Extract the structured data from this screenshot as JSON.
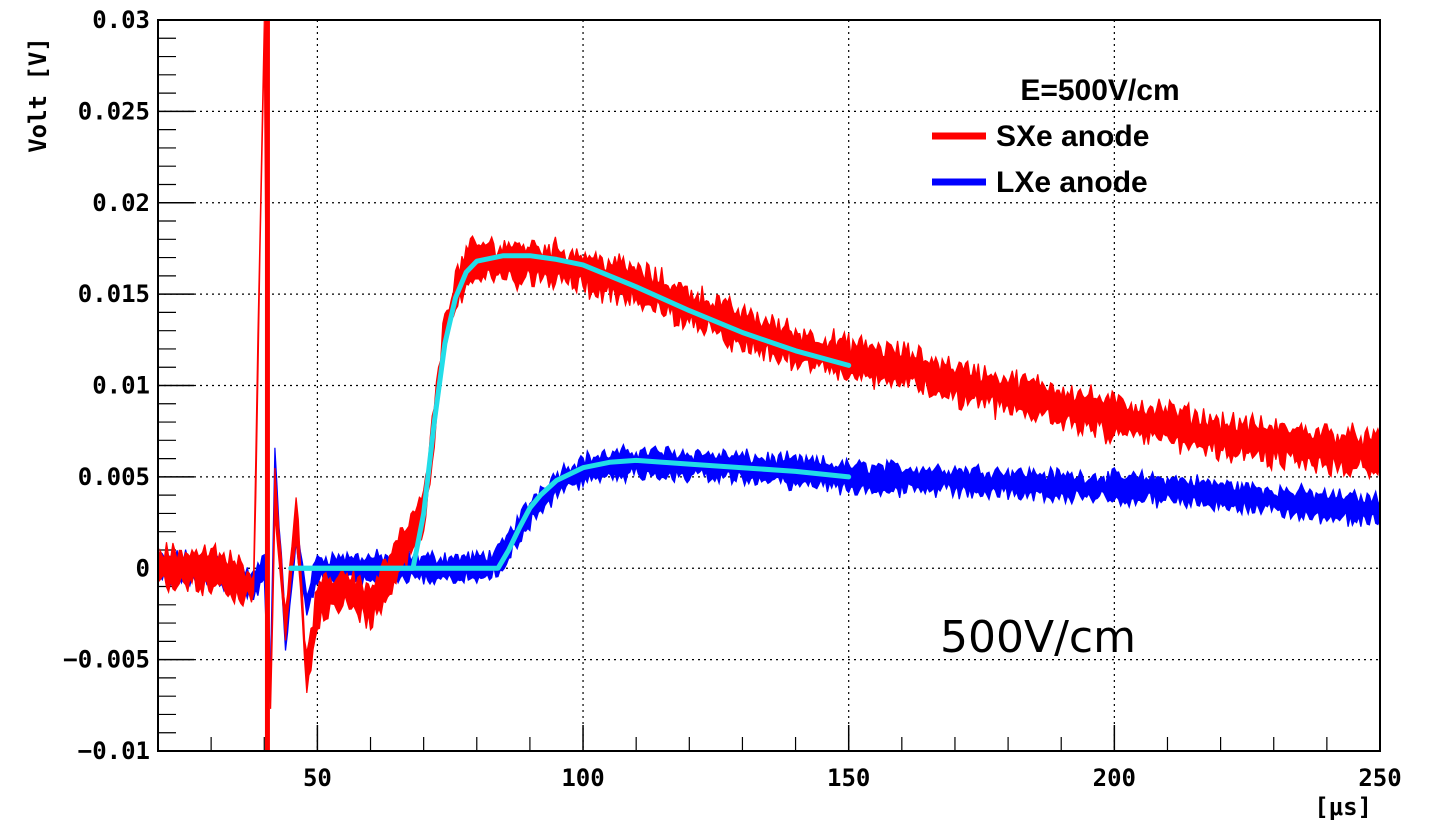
{
  "chart_data": {
    "type": "line",
    "title": "",
    "xlabel": "[μs]",
    "ylabel": "Volt  [V]",
    "xlim": [
      20,
      250
    ],
    "ylim": [
      -0.01,
      0.03
    ],
    "x_ticks": [
      50,
      100,
      150,
      200,
      250
    ],
    "x_tick_labels": [
      "50",
      "100",
      "150",
      "200",
      "250"
    ],
    "y_ticks": [
      -0.01,
      -0.005,
      0,
      0.005,
      0.01,
      0.015,
      0.02,
      0.025,
      0.03
    ],
    "y_tick_labels": [
      "−0.01",
      "−0.005",
      "0",
      "0.005",
      "0.01",
      "0.015",
      "0.02",
      "0.025",
      "0.03"
    ],
    "grid": true,
    "legend": {
      "title": "E=500V/cm",
      "placement": "top-right",
      "entries": [
        {
          "label": "SXe anode",
          "color": "#ff0000"
        },
        {
          "label": "LXe anode",
          "color": "#0000ff"
        }
      ]
    },
    "annotation": "500V/cm",
    "series": [
      {
        "name": "SXe anode",
        "color": "#ff0000",
        "style": "noisy band",
        "x": [
          20,
          30,
          38,
          40,
          41,
          42,
          44,
          46,
          48,
          50,
          55,
          60,
          65,
          68,
          70,
          72,
          74,
          76,
          78,
          80,
          85,
          90,
          95,
          100,
          110,
          120,
          130,
          140,
          150,
          160,
          170,
          180,
          190,
          200,
          210,
          220,
          230,
          240,
          250
        ],
        "y": [
          0.0,
          0.0,
          -0.001,
          0.03,
          -0.01,
          0.004,
          -0.003,
          0.003,
          -0.006,
          -0.002,
          -0.001,
          -0.002,
          0.0005,
          0.002,
          0.003,
          0.008,
          0.013,
          0.015,
          0.0165,
          0.0168,
          0.0168,
          0.0168,
          0.0166,
          0.0163,
          0.0155,
          0.0143,
          0.0131,
          0.0121,
          0.0114,
          0.011,
          0.0102,
          0.0095,
          0.009,
          0.0082,
          0.0078,
          0.0072,
          0.0068,
          0.0066,
          0.0062
        ]
      },
      {
        "name": "LXe anode",
        "color": "#0000ff",
        "style": "noisy band",
        "x": [
          20,
          30,
          38,
          40,
          41,
          42,
          44,
          46,
          48,
          50,
          55,
          60,
          65,
          70,
          75,
          80,
          84,
          88,
          92,
          96,
          100,
          110,
          120,
          130,
          140,
          150,
          160,
          170,
          180,
          190,
          200,
          210,
          220,
          230,
          240,
          250
        ],
        "y": [
          0.0,
          0.0,
          -0.001,
          0.0,
          -0.009,
          0.006,
          -0.004,
          0.002,
          -0.002,
          0.0,
          0.0,
          0.0,
          0.0,
          0.0,
          0.0,
          0.0,
          0.0003,
          0.0022,
          0.0038,
          0.0048,
          0.0054,
          0.0058,
          0.0057,
          0.0055,
          0.0053,
          0.005,
          0.0049,
          0.0048,
          0.0047,
          0.0045,
          0.0044,
          0.0043,
          0.004,
          0.0037,
          0.0034,
          0.0032
        ]
      },
      {
        "name": "",
        "color": "#22dde8",
        "style": "fit",
        "x": [
          45,
          68,
          70,
          72,
          74,
          76,
          78,
          80,
          85,
          90,
          95,
          100,
          110,
          120,
          130,
          140,
          150
        ],
        "y": [
          0.0,
          0.0,
          0.003,
          0.008,
          0.0123,
          0.0148,
          0.0162,
          0.0168,
          0.0171,
          0.0171,
          0.0169,
          0.0166,
          0.0154,
          0.0141,
          0.0129,
          0.0119,
          0.0111
        ]
      },
      {
        "name": "",
        "color": "#22dde8",
        "style": "fit",
        "x": [
          45,
          84,
          86,
          88,
          90,
          92,
          95,
          100,
          105,
          110,
          115,
          120,
          130,
          140,
          150
        ],
        "y": [
          0.0,
          0.0,
          0.001,
          0.0022,
          0.0033,
          0.004,
          0.0048,
          0.0055,
          0.0058,
          0.0059,
          0.0058,
          0.0057,
          0.0055,
          0.0053,
          0.005
        ]
      }
    ]
  }
}
